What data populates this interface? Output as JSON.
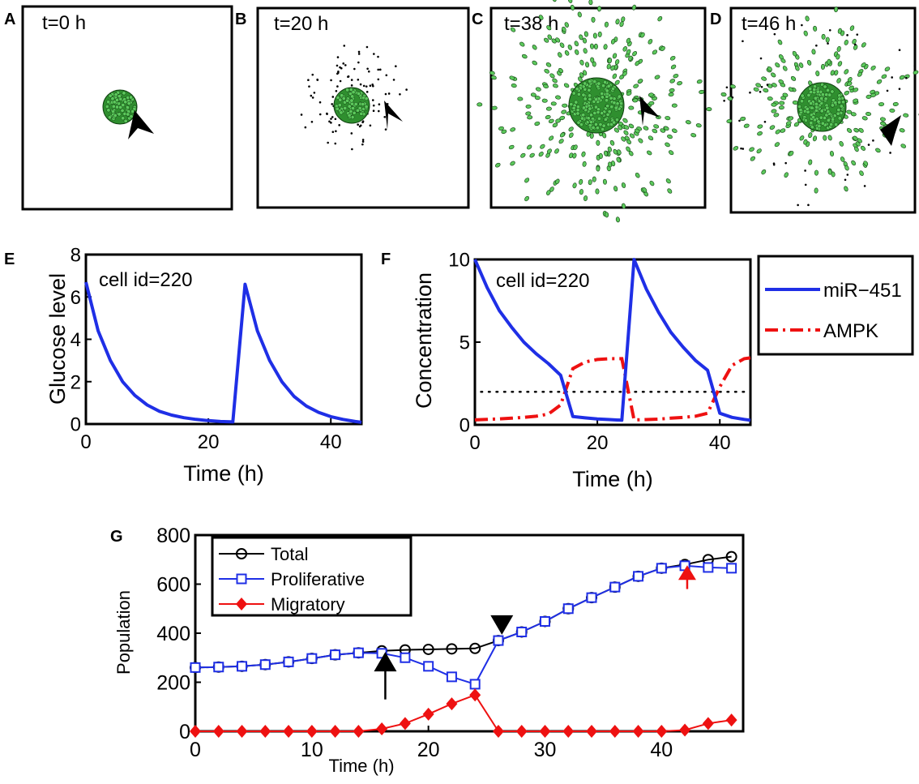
{
  "colors": {
    "blue": "#1f2fe6",
    "red": "#ee1111",
    "black": "#000000",
    "cell_green": "#2f8f2f",
    "cell_green_light": "#5cc85c"
  },
  "panels": {
    "A": {
      "letter": "A",
      "time": "t=0 h"
    },
    "B": {
      "letter": "B",
      "time": "t=20 h"
    },
    "C": {
      "letter": "C",
      "time": "t=38 h"
    },
    "D": {
      "letter": "D",
      "time": "t=46 h"
    },
    "E": {
      "letter": "E"
    },
    "F": {
      "letter": "F"
    },
    "G": {
      "letter": "G"
    }
  },
  "chart_data": [
    {
      "id": "E",
      "type": "line",
      "annotation": "cell id=220",
      "xlabel": "Time (h)",
      "ylabel": "Glucose level",
      "xlim": [
        0,
        45
      ],
      "ylim": [
        0,
        8
      ],
      "xticks": [
        0,
        20,
        40
      ],
      "yticks": [
        0,
        2,
        4,
        6,
        8
      ],
      "series": [
        {
          "name": "Glucose",
          "color": "#1f2fe6",
          "x": [
            0,
            2,
            4,
            6,
            8,
            10,
            12,
            14,
            16,
            18,
            20,
            22,
            24,
            26,
            28,
            30,
            32,
            34,
            36,
            38,
            40,
            42,
            44,
            45
          ],
          "y": [
            6.7,
            4.4,
            3.0,
            2.0,
            1.35,
            0.9,
            0.6,
            0.42,
            0.3,
            0.22,
            0.16,
            0.12,
            0.1,
            6.6,
            4.4,
            3.0,
            2.0,
            1.3,
            0.85,
            0.55,
            0.35,
            0.22,
            0.12,
            0.08
          ]
        }
      ]
    },
    {
      "id": "F",
      "type": "line",
      "annotation": "cell id=220",
      "xlabel": "Time (h)",
      "ylabel": "Concentration",
      "xlim": [
        0,
        45
      ],
      "ylim": [
        0,
        10
      ],
      "xticks": [
        0,
        20,
        40
      ],
      "yticks": [
        0,
        5,
        10
      ],
      "threshold": 2,
      "legend": [
        "miR−451",
        "AMPK"
      ],
      "series": [
        {
          "name": "miR−451",
          "color": "#1f2fe6",
          "style": "solid",
          "x": [
            0,
            2,
            4,
            6,
            8,
            10,
            12,
            14,
            16,
            18,
            20,
            22,
            24,
            26,
            28,
            30,
            32,
            34,
            36,
            38,
            40,
            42,
            44,
            45
          ],
          "y": [
            10,
            8.3,
            6.9,
            5.9,
            5.0,
            4.3,
            3.7,
            3.0,
            0.5,
            0.42,
            0.36,
            0.32,
            0.28,
            10,
            8.2,
            6.8,
            5.6,
            4.7,
            3.9,
            3.3,
            0.7,
            0.45,
            0.33,
            0.28
          ]
        },
        {
          "name": "AMPK",
          "color": "#ee1111",
          "style": "dashdot",
          "x": [
            0,
            2,
            4,
            6,
            8,
            10,
            12,
            14,
            16,
            18,
            20,
            22,
            24,
            26,
            28,
            30,
            32,
            34,
            36,
            38,
            40,
            42,
            44,
            45
          ],
          "y": [
            0.3,
            0.33,
            0.36,
            0.4,
            0.45,
            0.52,
            0.65,
            1.2,
            3.4,
            3.8,
            3.95,
            4.0,
            4.0,
            0.3,
            0.32,
            0.35,
            0.4,
            0.45,
            0.52,
            0.7,
            2.3,
            3.6,
            4.0,
            4.05
          ]
        }
      ]
    },
    {
      "id": "G",
      "type": "line",
      "xlabel": "Time (h)",
      "ylabel": "Population",
      "xlim": [
        0,
        47
      ],
      "ylim": [
        0,
        800
      ],
      "xticks": [
        0,
        10,
        20,
        30,
        40
      ],
      "yticks": [
        0,
        200,
        400,
        600,
        800
      ],
      "x": [
        0,
        2,
        4,
        6,
        8,
        10,
        12,
        14,
        16,
        18,
        20,
        22,
        24,
        26,
        28,
        30,
        32,
        34,
        36,
        38,
        40,
        42,
        44,
        46
      ],
      "series": [
        {
          "name": "Total",
          "color": "#000000",
          "marker": "circle",
          "values": [
            260,
            262,
            265,
            272,
            283,
            297,
            312,
            320,
            328,
            332,
            334,
            336,
            338,
            370,
            405,
            448,
            500,
            545,
            588,
            632,
            665,
            680,
            700,
            712
          ]
        },
        {
          "name": "Proliferative",
          "color": "#1f2fe6",
          "marker": "square",
          "values": [
            260,
            262,
            265,
            272,
            283,
            297,
            312,
            320,
            318,
            300,
            265,
            222,
            192,
            370,
            405,
            448,
            500,
            545,
            588,
            632,
            665,
            675,
            668,
            665
          ]
        },
        {
          "name": "Migratory",
          "color": "#ee1111",
          "marker": "diamond",
          "values": [
            0,
            0,
            0,
            0,
            0,
            0,
            0,
            0,
            10,
            32,
            70,
            112,
            148,
            0,
            0,
            0,
            0,
            0,
            0,
            0,
            0,
            5,
            32,
            46
          ]
        }
      ],
      "annotations": [
        {
          "kind": "black-arrow-up",
          "x": 16.3,
          "y_from": 130,
          "y_to": 330
        },
        {
          "kind": "black-triangle-down",
          "x": 26.3,
          "y": 440
        },
        {
          "kind": "red-arrow-up",
          "x": 42.2,
          "y_from": 580,
          "y_to": 690
        }
      ]
    }
  ]
}
